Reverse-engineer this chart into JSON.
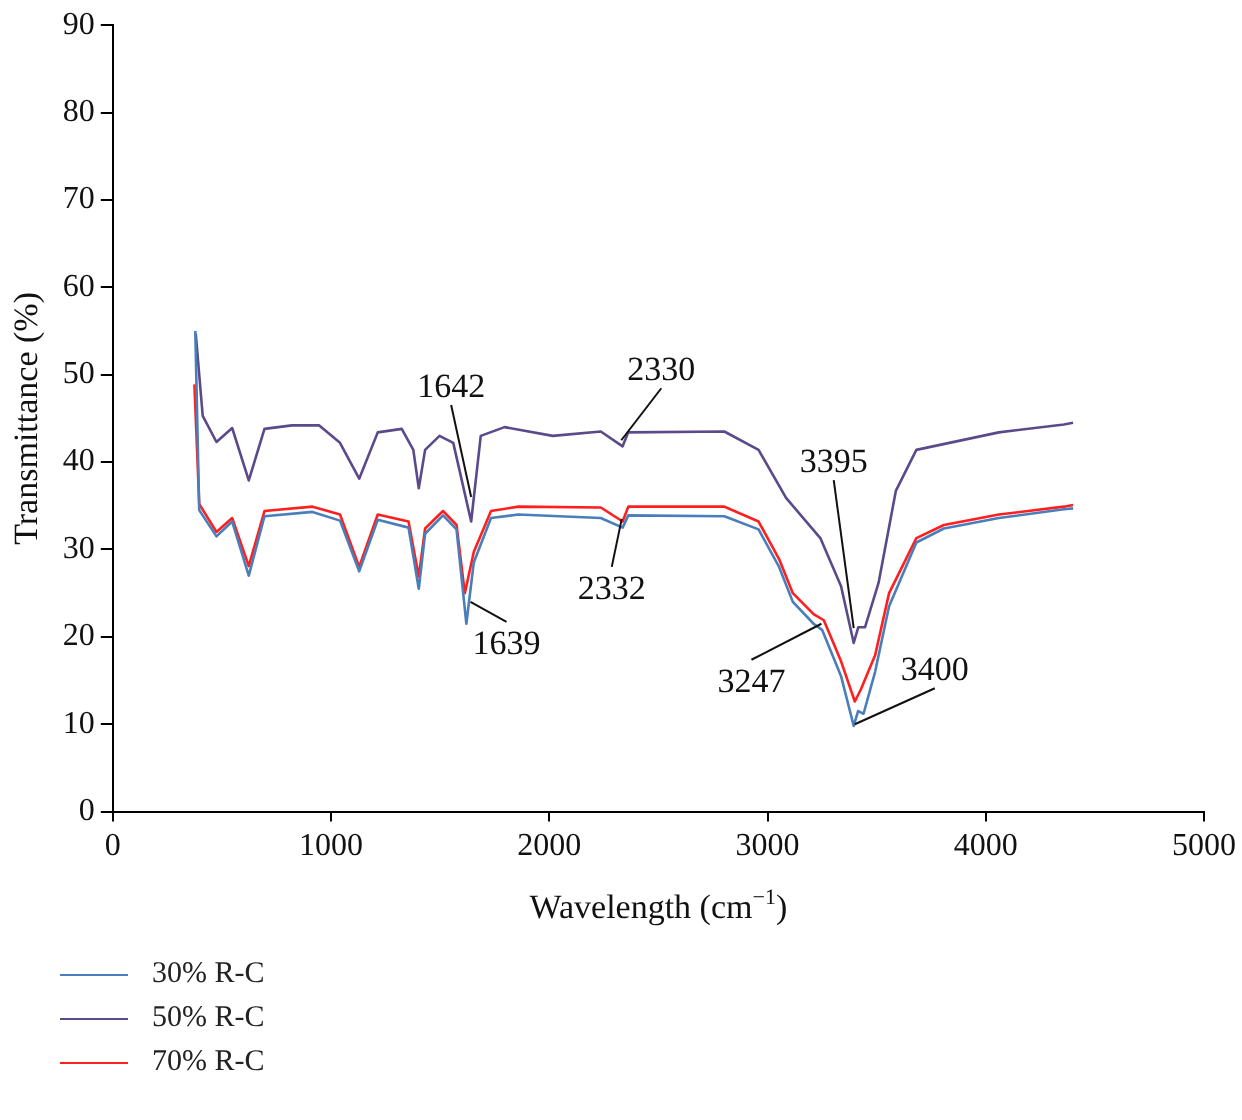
{
  "chart_data": {
    "type": "line",
    "xlabel": "Wavelength (cm$^{−1}$)",
    "ylabel": "Transmittance (%)",
    "xlim": [
      0,
      5000
    ],
    "xticks": [
      0,
      1000,
      2000,
      3000,
      4000,
      5000
    ],
    "ylim": [
      0,
      90
    ],
    "yticks": [
      0,
      10,
      20,
      30,
      40,
      50,
      60,
      70,
      80,
      90
    ],
    "grid": false,
    "legend": "bottom left",
    "marker": "none",
    "line_style": "solid",
    "series": [
      {
        "name": "30% R-C",
        "color": "#4a7ebb",
        "x": [
          378,
          396,
          475,
          547,
          623,
          695,
          915,
          1041,
          1129,
          1214,
          1355,
          1402,
          1431,
          1513,
          1575,
          1620,
          1654,
          1733,
          1858,
          2236,
          2336,
          2362,
          2802,
          2959,
          3053,
          3116,
          3211,
          3250,
          3337,
          3395,
          3415,
          3440,
          3493,
          3557,
          3682,
          3808,
          4060,
          4358,
          4400
        ],
        "values": [
          55,
          34.5,
          31.5,
          33.2,
          27,
          33.8,
          34.3,
          33.3,
          27.5,
          33.4,
          32.5,
          25.5,
          31.8,
          33.9,
          32.3,
          21.5,
          28.5,
          33.6,
          34.0,
          33.6,
          32.5,
          33.9,
          33.8,
          32.3,
          28,
          24,
          21.5,
          20.8,
          15.5,
          9.8,
          11.5,
          11.2,
          16,
          23.5,
          30.8,
          32.4,
          33.6,
          34.6,
          34.7
        ]
      },
      {
        "name": "50% R-C",
        "color": "#5b4a8b",
        "x": [
          380,
          412,
          475,
          547,
          623,
          695,
          821,
          946,
          1041,
          1129,
          1214,
          1324,
          1377,
          1402,
          1431,
          1497,
          1560,
          1642,
          1686,
          1795,
          2016,
          2236,
          2336,
          2362,
          2802,
          2959,
          3085,
          3242,
          3337,
          3395,
          3416,
          3447,
          3509,
          3588,
          3682,
          3871,
          4060,
          4358,
          4400
        ],
        "values": [
          54.7,
          45.3,
          42.3,
          43.9,
          37.9,
          43.8,
          44.2,
          44.2,
          42.2,
          38.1,
          43.4,
          43.8,
          41.4,
          37.0,
          41.4,
          43.0,
          42.2,
          33.2,
          43.0,
          44.0,
          43.0,
          43.5,
          41.8,
          43.4,
          43.5,
          41.4,
          35.9,
          31.3,
          25.8,
          19.3,
          21.1,
          21.1,
          26.2,
          36.7,
          41.4,
          42.4,
          43.4,
          44.3,
          44.5
        ]
      },
      {
        "name": "70% R-C",
        "color": "#ff1f1f",
        "x": [
          374,
          396,
          475,
          547,
          623,
          695,
          915,
          1041,
          1129,
          1214,
          1355,
          1402,
          1431,
          1513,
          1575,
          1613,
          1654,
          1733,
          1858,
          2236,
          2336,
          2362,
          2802,
          2959,
          3053,
          3116,
          3211,
          3258,
          3337,
          3400,
          3428,
          3493,
          3557,
          3682,
          3808,
          4060,
          4358,
          4400
        ],
        "values": [
          48.9,
          35.2,
          32.0,
          33.6,
          28.1,
          34.4,
          34.9,
          34.0,
          28.0,
          34.0,
          33.2,
          26.9,
          32.4,
          34.4,
          32.8,
          25.0,
          29.7,
          34.4,
          34.9,
          34.8,
          33.2,
          34.9,
          34.9,
          33.2,
          28.9,
          25.0,
          22.6,
          21.9,
          17.2,
          12.6,
          14.0,
          17.9,
          25.0,
          31.3,
          32.8,
          34.0,
          34.9,
          35.1
        ]
      }
    ],
    "annotations": [
      {
        "text": "1642",
        "x": 1642,
        "y": 36
      },
      {
        "text": "1639",
        "x": 1639,
        "y": 24
      },
      {
        "text": "2330",
        "x": 2330,
        "y": 42.5
      },
      {
        "text": "2332",
        "x": 2332,
        "y": 33.5
      },
      {
        "text": "3395",
        "x": 3395,
        "y": 21
      },
      {
        "text": "3247",
        "x": 3247,
        "y": 21.5
      },
      {
        "text": "3400",
        "x": 3400,
        "y": 10
      }
    ]
  }
}
